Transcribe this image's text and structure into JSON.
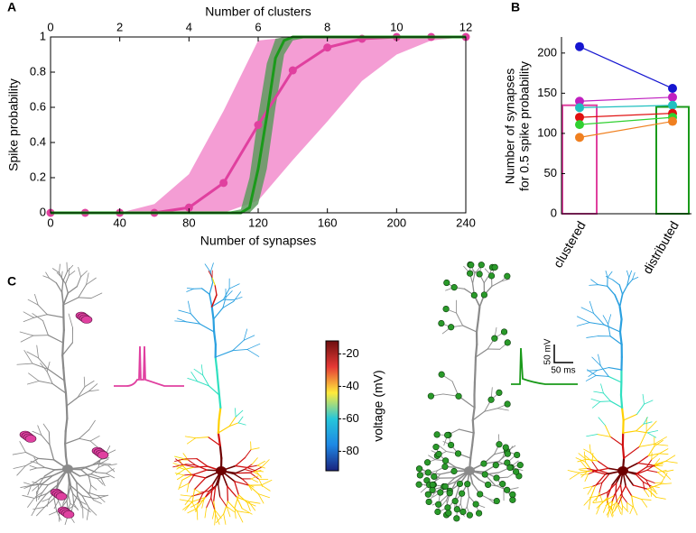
{
  "chart_data": [
    {
      "type": "line",
      "panel_label": "A",
      "xlabel": "Number of synapses",
      "x2label": "Number of clusters",
      "ylabel": "Spike probability",
      "xlim": [
        0,
        240
      ],
      "xticks": [
        0,
        40,
        80,
        120,
        160,
        200,
        240
      ],
      "x2lim": [
        0,
        12
      ],
      "x2ticks": [
        0,
        2,
        4,
        6,
        8,
        10,
        12
      ],
      "ylim": [
        0,
        1
      ],
      "yticks": [
        0,
        0.2,
        0.4,
        0.6,
        0.8,
        1
      ],
      "series": [
        {
          "color": "#e0409f",
          "band_color": "#f28ccc",
          "markers": true,
          "x": [
            0,
            20,
            40,
            60,
            80,
            100,
            120,
            140,
            160,
            180,
            200,
            220,
            240
          ],
          "values": [
            0,
            0,
            0,
            0,
            0.03,
            0.17,
            0.5,
            0.81,
            0.94,
            0.99,
            1,
            1,
            1
          ],
          "lower": [
            0,
            0,
            0,
            0,
            0,
            0,
            0.07,
            0.3,
            0.52,
            0.75,
            0.9,
            0.98,
            1
          ],
          "upper": [
            0,
            0,
            0,
            0.05,
            0.22,
            0.58,
            0.98,
            1,
            1,
            1,
            1,
            1,
            1
          ]
        },
        {
          "color": "#1a9a1a",
          "band_color": "#5f9a5f",
          "markers": false,
          "x": [
            0,
            100,
            110,
            115,
            120,
            125,
            130,
            135,
            140,
            150,
            240
          ],
          "values": [
            0,
            0,
            0,
            0.03,
            0.25,
            0.55,
            0.88,
            0.98,
            1,
            1,
            1
          ],
          "lower": [
            0,
            0,
            0,
            0,
            0.05,
            0.25,
            0.6,
            0.9,
            0.98,
            1,
            1
          ],
          "upper": [
            0,
            0,
            0.02,
            0.2,
            0.55,
            0.85,
            0.99,
            1,
            1,
            1,
            1
          ]
        }
      ]
    },
    {
      "type": "bar",
      "panel_label": "B",
      "categories": [
        "clustered",
        "distributed"
      ],
      "values": [
        135,
        133
      ],
      "colors": [
        "#e0409f",
        "#1a9a1a"
      ],
      "ylabel": [
        "Number of synapses",
        "for 0.5 spike probability"
      ],
      "ylim": [
        0,
        220
      ],
      "yticks": [
        0,
        50,
        100,
        150,
        200
      ],
      "pairs": [
        {
          "color": "#1515d0",
          "values": [
            208,
            156
          ]
        },
        {
          "color": "#c020c0",
          "values": [
            140,
            145
          ]
        },
        {
          "color": "#20c0c0",
          "values": [
            132,
            135
          ]
        },
        {
          "color": "#e01010",
          "values": [
            120,
            125
          ]
        },
        {
          "color": "#30d030",
          "values": [
            111,
            120
          ]
        },
        {
          "color": "#f08020",
          "values": [
            95,
            115
          ]
        }
      ]
    },
    {
      "type": "colorbar",
      "panel_label": "C",
      "label": "voltage (mV)",
      "ylim": [
        -92,
        -12
      ],
      "yticks": [
        -20,
        -40,
        -60,
        -80
      ],
      "colors": [
        "#1a237e",
        "#1e88e5",
        "#26c6da",
        "#ffeb3b",
        "#e53935",
        "#6d0f0f"
      ],
      "scale_bar": {
        "voltage": "50 mV",
        "time": "50 ms"
      }
    }
  ]
}
